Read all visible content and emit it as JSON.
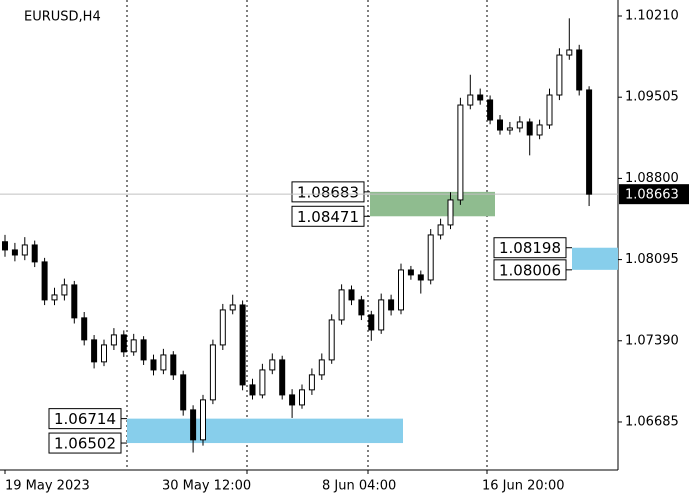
{
  "chart_data": {
    "type": "candlestick",
    "title": "EURUSD,H4",
    "ylim": [
      1.06268,
      1.10349
    ],
    "yticks": [
      {
        "value": 1.1021,
        "label": "1.10210"
      },
      1.09505,
      {
        "value": 1.088,
        "label": "1.08800"
      },
      1.08095,
      {
        "value": 1.0739,
        "label": "1.07390"
      },
      1.06685
    ],
    "x_labels": [
      "19 May 2023",
      "30 May 12:00",
      "8 Jun 04:00",
      "16 Jun 20:00"
    ],
    "up_color": "#ffffff",
    "down_color": "#000000",
    "open": [
      1.0825,
      1.08179,
      1.08135,
      1.08222,
      1.08075,
      1.07745,
      1.07788,
      1.07875,
      1.07589,
      1.07398,
      1.07207,
      1.07354,
      1.07441,
      1.07294,
      1.07398,
      1.07224,
      1.07137,
      1.07267,
      1.07094,
      1.0679,
      1.0653,
      1.06877,
      1.07354,
      1.07658,
      1.07701,
      1.07007,
      1.0692,
      1.07137,
      1.07224,
      1.0692,
      1.06833,
      1.06964,
      1.07094,
      1.07224,
      1.07571,
      1.07832,
      1.07745,
      1.07615,
      1.07484,
      1.07745,
      1.07658,
      1.08005,
      1.07962,
      1.07918,
      1.08309,
      1.08396,
      1.08613,
      1.09437,
      1.09524,
      1.09481,
      1.09307,
      1.0922,
      1.09238,
      1.0929,
      1.09177,
      1.09264,
      1.09524,
      1.09871,
      1.09915,
      1.09568
    ],
    "high": [
      1.0831,
      1.0824,
      1.0829,
      1.0826,
      1.0811,
      1.0785,
      1.0793,
      1.0791,
      1.0764,
      1.0744,
      1.074,
      1.075,
      1.0748,
      1.0745,
      1.0743,
      1.0727,
      1.0732,
      1.073,
      1.0713,
      1.0683,
      1.0692,
      1.074,
      1.0771,
      1.0779,
      1.0774,
      1.0706,
      1.0719,
      1.0728,
      1.0726,
      1.0697,
      1.0701,
      1.0715,
      1.0728,
      1.0762,
      1.0788,
      1.0787,
      1.0778,
      1.0765,
      1.078,
      1.0779,
      1.0806,
      1.0804,
      1.08,
      1.0836,
      1.0845,
      1.0868,
      1.095,
      1.097,
      1.0958,
      1.0952,
      1.0935,
      1.0929,
      1.0934,
      1.0932,
      1.0931,
      1.0958,
      1.0993,
      1.1019,
      1.0996,
      1.096
    ],
    "low": [
      1.0812,
      1.0808,
      1.0809,
      1.0803,
      1.077,
      1.077,
      1.0774,
      1.0754,
      1.0735,
      1.0715,
      1.0717,
      1.0731,
      1.0725,
      1.0726,
      1.0718,
      1.0709,
      1.071,
      1.0705,
      1.0674,
      1.0642,
      1.0648,
      1.0684,
      1.0731,
      1.0762,
      1.0696,
      1.0688,
      1.0689,
      1.071,
      1.0688,
      1.0672,
      1.068,
      1.0692,
      1.0705,
      1.0719,
      1.0753,
      1.077,
      1.0757,
      1.0739,
      1.0745,
      1.0761,
      1.0762,
      1.0792,
      1.078,
      1.0788,
      1.0827,
      1.0836,
      1.0857,
      1.094,
      1.0944,
      1.0927,
      1.0918,
      1.0918,
      1.092,
      1.09,
      1.0914,
      1.0923,
      1.0948,
      1.0983,
      1.0952,
      1.0856
    ],
    "close": [
      1.08179,
      1.08135,
      1.08222,
      1.08075,
      1.07745,
      1.07788,
      1.07875,
      1.07589,
      1.07398,
      1.07207,
      1.07354,
      1.07441,
      1.07294,
      1.07398,
      1.07224,
      1.07137,
      1.07267,
      1.07094,
      1.0679,
      1.0653,
      1.06877,
      1.07354,
      1.07658,
      1.07701,
      1.07007,
      1.0692,
      1.07137,
      1.07224,
      1.0692,
      1.06833,
      1.06964,
      1.07094,
      1.07224,
      1.07571,
      1.07832,
      1.07745,
      1.07615,
      1.07484,
      1.07745,
      1.07658,
      1.08005,
      1.07962,
      1.07918,
      1.08309,
      1.08396,
      1.08613,
      1.09437,
      1.09524,
      1.09481,
      1.09307,
      1.0922,
      1.09238,
      1.0929,
      1.09177,
      1.09264,
      1.09524,
      1.09871,
      1.09915,
      1.09568,
      1.08663
    ],
    "current_price": 1.08663,
    "zones": [
      {
        "top": 1.08683,
        "bottom": 1.08471,
        "color": "#8fbc8f"
      },
      {
        "top": 1.08198,
        "bottom": 1.08006,
        "color": "#87ceeb"
      },
      {
        "top": 1.06714,
        "bottom": 1.06502,
        "color": "#87ceeb"
      }
    ]
  }
}
